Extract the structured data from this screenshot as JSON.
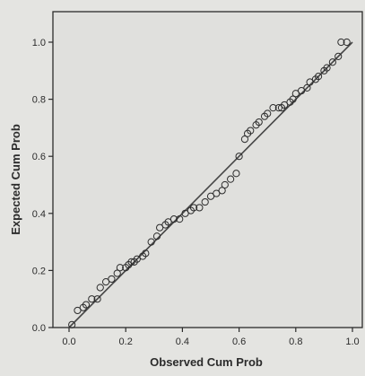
{
  "chart_data": {
    "type": "scatter",
    "title": "",
    "xlabel": "Observed Cum Prob",
    "ylabel": "Expected Cum Prob",
    "xlim": [
      -0.05,
      1.02
    ],
    "ylim": [
      0.0,
      1.1
    ],
    "xticks": [
      "0.0",
      "0.2",
      "0.4",
      "0.6",
      "0.8",
      "1.0"
    ],
    "yticks": [
      "0.0",
      "0.2",
      "0.4",
      "0.6",
      "0.8",
      "1.0"
    ],
    "grid": false,
    "legend": "none",
    "reference_line": {
      "x": [
        0.0,
        1.0
      ],
      "y": [
        0.0,
        1.0
      ]
    },
    "series": [
      {
        "marker": "open-circle",
        "x": [
          0.01,
          0.03,
          0.05,
          0.06,
          0.08,
          0.1,
          0.11,
          0.13,
          0.15,
          0.17,
          0.18,
          0.2,
          0.21,
          0.22,
          0.23,
          0.24,
          0.26,
          0.27,
          0.29,
          0.31,
          0.32,
          0.34,
          0.35,
          0.37,
          0.39,
          0.41,
          0.43,
          0.44,
          0.46,
          0.48,
          0.5,
          0.52,
          0.54,
          0.55,
          0.57,
          0.59,
          0.6,
          0.62,
          0.63,
          0.64,
          0.66,
          0.67,
          0.69,
          0.7,
          0.72,
          0.74,
          0.75,
          0.76,
          0.78,
          0.79,
          0.8,
          0.82,
          0.84,
          0.85,
          0.87,
          0.88,
          0.9,
          0.91,
          0.93,
          0.95,
          0.96,
          0.98
        ],
        "y": [
          0.01,
          0.06,
          0.07,
          0.08,
          0.1,
          0.1,
          0.14,
          0.16,
          0.17,
          0.19,
          0.21,
          0.21,
          0.22,
          0.23,
          0.23,
          0.24,
          0.25,
          0.26,
          0.3,
          0.32,
          0.35,
          0.36,
          0.37,
          0.38,
          0.38,
          0.4,
          0.41,
          0.42,
          0.42,
          0.44,
          0.46,
          0.47,
          0.48,
          0.5,
          0.52,
          0.54,
          0.6,
          0.66,
          0.68,
          0.69,
          0.71,
          0.72,
          0.74,
          0.75,
          0.77,
          0.77,
          0.77,
          0.78,
          0.79,
          0.8,
          0.82,
          0.83,
          0.84,
          0.86,
          0.87,
          0.88,
          0.9,
          0.91,
          0.93,
          0.95,
          1.0,
          1.0
        ]
      }
    ]
  },
  "colors": {
    "background": "#e4e4e1",
    "plot_area": "#e0e0dd",
    "ink": "#2b2b2b",
    "line": "#454545"
  }
}
